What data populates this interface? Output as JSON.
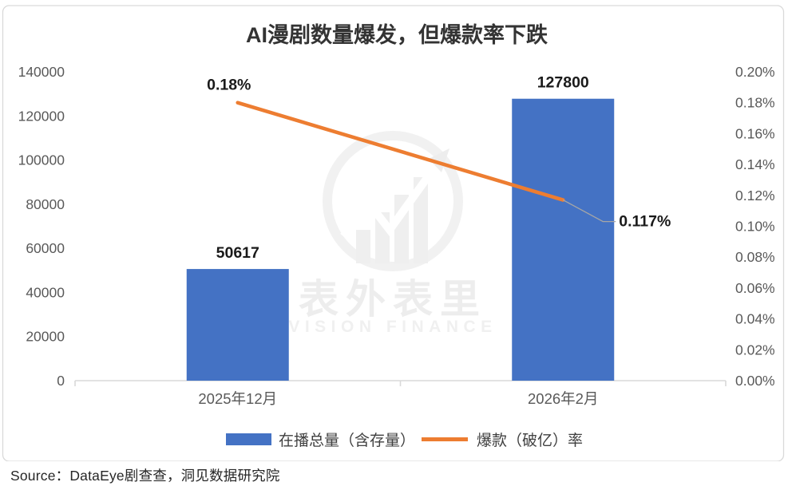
{
  "chart_data": {
    "type": "bar",
    "combo": "bar+line",
    "title": "AI漫剧数量爆发，但爆款率下跌",
    "categories": [
      "2025年12月",
      "2026年2月"
    ],
    "series": [
      {
        "name": "在播总量（含存量）",
        "type": "bar",
        "axis": "left",
        "values": [
          50617,
          127800
        ],
        "data_labels": [
          "50617",
          "127800"
        ],
        "color": "#4472C4"
      },
      {
        "name": "爆款（破亿）率",
        "type": "line",
        "axis": "right",
        "values": [
          0.18,
          0.117
        ],
        "data_labels": [
          "0.18%",
          "0.117%"
        ],
        "color": "#ED7D31"
      }
    ],
    "left_axis": {
      "min": 0,
      "max": 140000,
      "step": 20000,
      "tick_labels": [
        "140000",
        "120000",
        "100000",
        "80000",
        "60000",
        "40000",
        "20000",
        "0"
      ]
    },
    "right_axis": {
      "min": 0,
      "max": 0.2,
      "step": 0.02,
      "unit": "%",
      "tick_labels": [
        "0.20%",
        "0.18%",
        "0.16%",
        "0.14%",
        "0.12%",
        "0.10%",
        "0.08%",
        "0.06%",
        "0.04%",
        "0.02%",
        "0.00%"
      ]
    },
    "grid": false,
    "legend_position": "bottom"
  },
  "watermark": {
    "line1": "表外表里",
    "line2": "VISION FINANCE"
  },
  "source_text": "Source：DataEye剧查查，洞见数据研究院",
  "colors": {
    "bar": "#4472C4",
    "line": "#ED7D31",
    "axis_text": "#595959",
    "axis_line": "#D9D9D9",
    "data_label": "#1A1A1A",
    "leader_line": "#A6A6A6",
    "card_border": "#D9D9D9",
    "watermark": "#EFEFEF"
  }
}
